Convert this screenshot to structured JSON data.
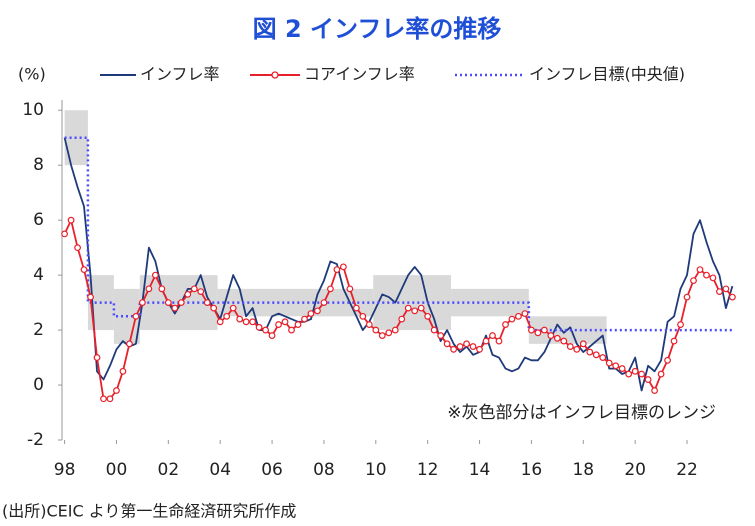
{
  "chart_data": {
    "type": "line",
    "title": "図 2 インフレ率の推移",
    "y_unit": "(%)",
    "annotation": "※灰色部分はインフレ目標のレンジ",
    "source": "(出所)CEIC より第一生命経済研究所作成",
    "xlim": [
      1997.9,
      2023.85
    ],
    "ylim": [
      -2,
      10.3
    ],
    "yticks": [
      -2,
      0,
      2,
      4,
      6,
      8,
      10
    ],
    "xticks": [
      {
        "value": 1998,
        "label": "98"
      },
      {
        "value": 2000,
        "label": "00"
      },
      {
        "value": 2002,
        "label": "02"
      },
      {
        "value": 2004,
        "label": "04"
      },
      {
        "value": 2006,
        "label": "06"
      },
      {
        "value": 2008,
        "label": "08"
      },
      {
        "value": 2010,
        "label": "10"
      },
      {
        "value": 2012,
        "label": "12"
      },
      {
        "value": 2014,
        "label": "14"
      },
      {
        "value": 2016,
        "label": "16"
      },
      {
        "value": 2018,
        "label": "18"
      },
      {
        "value": 2020,
        "label": "20"
      },
      {
        "value": 2022,
        "label": "22"
      }
    ],
    "grid": false,
    "range_color": "#d9d9d9",
    "target_range": [
      {
        "x": [
          1998.0,
          1998.9
        ],
        "range": [
          8,
          10
        ]
      },
      {
        "x": [
          1998.9,
          1999.9
        ],
        "range": [
          2,
          4
        ]
      },
      {
        "x": [
          1999.9,
          2000.9
        ],
        "range": [
          1.5,
          3.5
        ]
      },
      {
        "x": [
          2000.9,
          2003.9
        ],
        "range": [
          2,
          4
        ]
      },
      {
        "x": [
          2003.9,
          2009.9
        ],
        "range": [
          2.5,
          3.5
        ]
      },
      {
        "x": [
          2009.9,
          2012.9
        ],
        "range": [
          2,
          4
        ]
      },
      {
        "x": [
          2012.9,
          2015.9
        ],
        "range": [
          2.5,
          3.5
        ]
      },
      {
        "x": [
          2015.9,
          2018.9
        ],
        "range": [
          1.5,
          2.5
        ]
      }
    ],
    "x": [
      1998,
      1998.25,
      1998.5,
      1998.75,
      1999,
      1999.25,
      1999.5,
      1999.75,
      2000,
      2000.25,
      2000.5,
      2000.75,
      2001,
      2001.25,
      2001.5,
      2001.75,
      2002,
      2002.25,
      2002.5,
      2002.75,
      2003,
      2003.25,
      2003.5,
      2003.75,
      2004,
      2004.25,
      2004.5,
      2004.75,
      2005,
      2005.25,
      2005.5,
      2005.75,
      2006,
      2006.25,
      2006.5,
      2006.75,
      2007,
      2007.25,
      2007.5,
      2007.75,
      2008,
      2008.25,
      2008.5,
      2008.75,
      2009,
      2009.25,
      2009.5,
      2009.75,
      2010,
      2010.25,
      2010.5,
      2010.75,
      2011,
      2011.25,
      2011.5,
      2011.75,
      2012,
      2012.25,
      2012.5,
      2012.75,
      2013,
      2013.25,
      2013.5,
      2013.75,
      2014,
      2014.25,
      2014.5,
      2014.75,
      2015,
      2015.25,
      2015.5,
      2015.75,
      2016,
      2016.25,
      2016.5,
      2016.75,
      2017,
      2017.25,
      2017.5,
      2017.75,
      2018,
      2018.25,
      2018.5,
      2018.75,
      2019,
      2019.25,
      2019.5,
      2019.75,
      2020,
      2020.25,
      2020.5,
      2020.75,
      2021,
      2021.25,
      2021.5,
      2021.75,
      2022,
      2022.25,
      2022.5,
      2022.75,
      2023,
      2023.25,
      2023.5,
      2023.75
    ],
    "series": [
      {
        "name": "インフレ率",
        "color": "#1f3a7a",
        "style": "solid",
        "values": [
          9.0,
          8.0,
          7.2,
          6.5,
          4.0,
          0.5,
          0.2,
          0.7,
          1.3,
          1.6,
          1.4,
          1.5,
          3.0,
          5.0,
          4.5,
          3.5,
          3.0,
          2.6,
          3.0,
          3.5,
          3.5,
          4.0,
          3.2,
          2.8,
          2.4,
          3.2,
          4.0,
          3.5,
          2.5,
          2.8,
          2.0,
          2.0,
          2.5,
          2.6,
          2.5,
          2.4,
          2.3,
          2.3,
          2.4,
          3.3,
          3.8,
          4.5,
          4.4,
          3.5,
          3.0,
          2.5,
          2.0,
          2.3,
          2.8,
          3.3,
          3.2,
          3.0,
          3.5,
          4.0,
          4.3,
          4.0,
          3.0,
          2.4,
          1.6,
          2.0,
          1.5,
          1.2,
          1.4,
          1.1,
          1.2,
          1.8,
          1.1,
          1.0,
          0.6,
          0.5,
          0.6,
          1.0,
          0.9,
          0.9,
          1.2,
          1.7,
          2.2,
          1.9,
          2.1,
          1.5,
          1.2,
          1.4,
          1.6,
          1.8,
          0.6,
          0.6,
          0.4,
          0.5,
          1.0,
          -0.2,
          0.7,
          0.5,
          0.9,
          2.3,
          2.5,
          3.5,
          4.0,
          5.5,
          6.0,
          5.2,
          4.5,
          4.0,
          2.8,
          3.6
        ]
      },
      {
        "name": "コアインフレ率",
        "color": "#e8202a",
        "style": "marker",
        "values": [
          5.5,
          6.0,
          5.0,
          4.2,
          3.2,
          1.0,
          -0.5,
          -0.5,
          -0.2,
          0.5,
          1.5,
          2.5,
          3.0,
          3.5,
          4.0,
          3.5,
          3.0,
          2.8,
          3.0,
          3.3,
          3.5,
          3.4,
          3.0,
          2.8,
          2.3,
          2.5,
          2.8,
          2.4,
          2.3,
          2.3,
          2.1,
          2.0,
          1.8,
          2.2,
          2.3,
          2.0,
          2.2,
          2.4,
          2.6,
          2.7,
          3.0,
          3.5,
          4.2,
          4.3,
          3.5,
          2.8,
          2.5,
          2.2,
          2.0,
          1.8,
          1.9,
          2.0,
          2.4,
          2.8,
          2.7,
          2.8,
          2.5,
          2.0,
          1.8,
          1.5,
          1.3,
          1.4,
          1.5,
          1.4,
          1.3,
          1.6,
          1.8,
          1.6,
          2.2,
          2.4,
          2.5,
          2.6,
          2.0,
          1.9,
          2.0,
          1.8,
          1.7,
          1.6,
          1.4,
          1.3,
          1.5,
          1.2,
          1.1,
          1.0,
          0.8,
          0.7,
          0.6,
          0.4,
          0.5,
          0.4,
          0.2,
          -0.2,
          0.4,
          0.9,
          1.6,
          2.2,
          3.2,
          3.8,
          4.2,
          4.0,
          3.9,
          3.4,
          3.5,
          3.2
        ]
      },
      {
        "name": "インフレ目標(中央値)",
        "color": "#4b4bff",
        "style": "dotted",
        "x": [
          1998.0,
          1998.9,
          1998.9,
          1999.9,
          1999.9,
          2000.9,
          2000.9,
          2015.9,
          2015.9,
          2023.75
        ],
        "values": [
          9,
          9,
          3,
          3,
          2.5,
          2.5,
          3,
          3,
          2,
          2
        ]
      }
    ]
  }
}
